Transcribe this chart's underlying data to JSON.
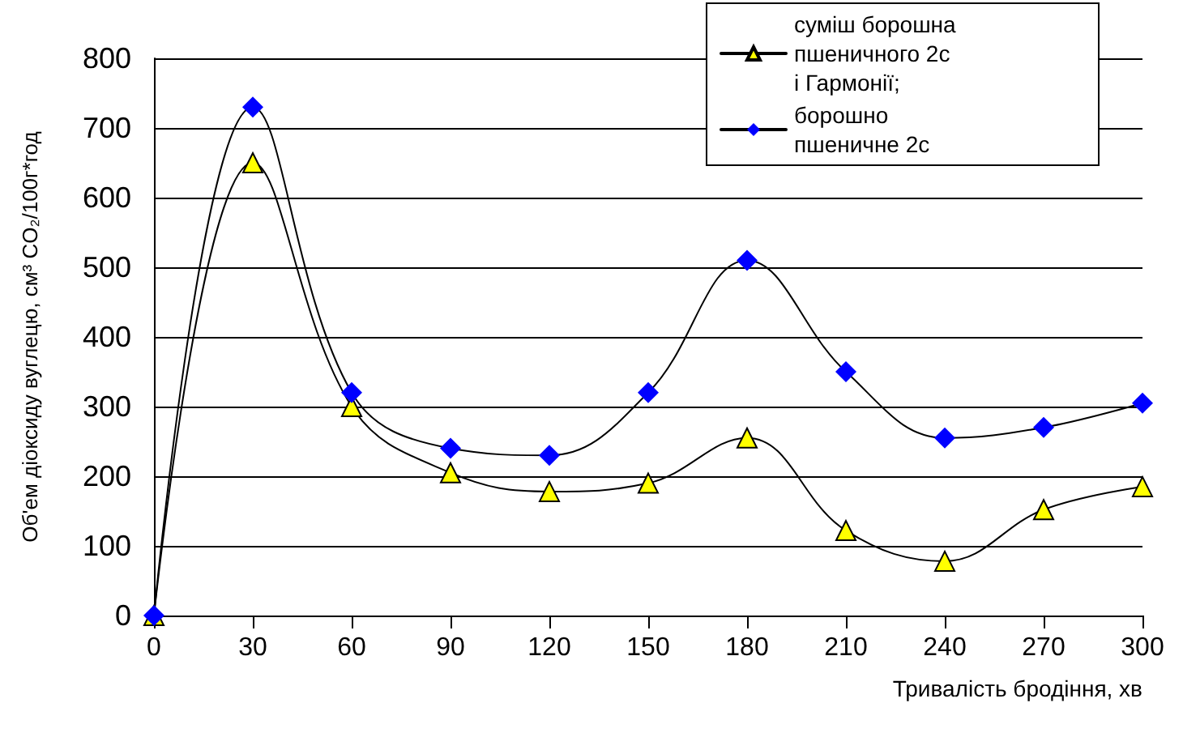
{
  "chart_data": {
    "type": "line",
    "xlabel": "Тривалість бродіння, хв",
    "ylabel": "Об'ем діоксиду вуглецю, см³ CO₂/100г*год",
    "x": [
      0,
      30,
      60,
      90,
      120,
      150,
      180,
      210,
      240,
      270,
      300
    ],
    "series": [
      {
        "name": "суміш борошна пшеничного 2с і Гармонії;",
        "color": "#ffff00",
        "marker": "triangle",
        "values": [
          0,
          650,
          300,
          205,
          178,
          190,
          255,
          122,
          78,
          152,
          185
        ]
      },
      {
        "name": "борошно пшеничне 2с",
        "color": "#0000ff",
        "marker": "diamond",
        "values": [
          0,
          730,
          320,
          240,
          230,
          320,
          510,
          350,
          255,
          270,
          305
        ]
      }
    ],
    "xlim": [
      0,
      300
    ],
    "xticks": [
      0,
      30,
      60,
      90,
      120,
      150,
      180,
      210,
      240,
      270,
      300
    ],
    "ylim": [
      0,
      800
    ],
    "yticks": [
      0,
      100,
      200,
      300,
      400,
      500,
      600,
      700,
      800
    ],
    "grid": "y",
    "legend": "top right",
    "line_style": "solid"
  }
}
